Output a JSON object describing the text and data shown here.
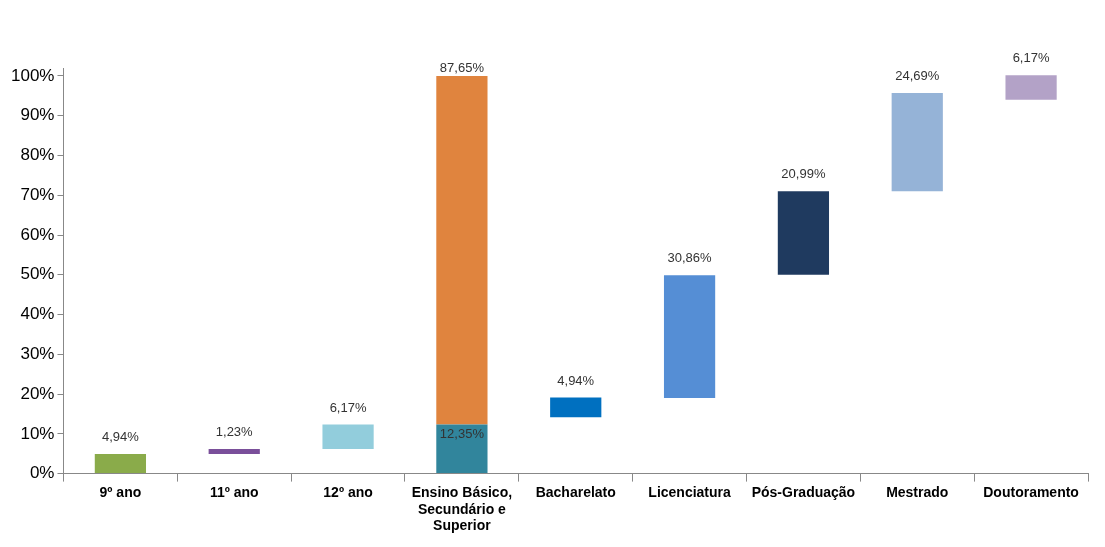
{
  "chart_data": {
    "type": "bar",
    "categories": [
      "9º ano",
      "11º ano",
      "12º ano",
      "Ensino Básico, Secundário e Superior",
      "Bacharelato",
      "Licenciatura",
      "Pós-Graduação",
      "Mestrado",
      "Doutoramento"
    ],
    "series": [
      {
        "colors": [
          "#8aab4a",
          "#7a4f9a",
          "#92cddc",
          "#31859c",
          "#0070c0",
          "#558ed5",
          "#1f3a5f",
          "#95b3d7",
          "#b3a2c7"
        ],
        "values": [
          4.94,
          1.23,
          6.17,
          12.35,
          4.94,
          30.86,
          20.99,
          24.69,
          6.17
        ],
        "base": [
          0,
          4.94,
          6.17,
          0,
          14.2,
          19,
          50,
          71,
          94
        ],
        "value_labels": [
          "4,94%",
          "1,23%",
          "6,17%",
          "12,35%",
          "4,94%",
          "30,86%",
          "20,99%",
          "24,69%",
          "6,17%"
        ]
      },
      {
        "colors": [
          null,
          null,
          null,
          "#e0843e",
          null,
          null,
          null,
          null,
          null
        ],
        "values": [
          null,
          null,
          null,
          87.65,
          null,
          null,
          null,
          null,
          null
        ],
        "base": [
          null,
          null,
          null,
          12.35,
          null,
          null,
          null,
          null,
          null
        ],
        "value_labels": [
          null,
          null,
          null,
          "87,65%",
          null,
          null,
          null,
          null,
          null
        ]
      }
    ],
    "ylim": [
      0,
      102
    ],
    "yticks": [
      {
        "value": 0,
        "label": "0%"
      },
      {
        "value": 10,
        "label": "10%"
      },
      {
        "value": 20,
        "label": "20%"
      },
      {
        "value": 30,
        "label": "30%"
      },
      {
        "value": 40,
        "label": "40%"
      },
      {
        "value": 50,
        "label": "50%"
      },
      {
        "value": 60,
        "label": "60%"
      },
      {
        "value": 70,
        "label": "70%"
      },
      {
        "value": 80,
        "label": "80%"
      },
      {
        "value": 90,
        "label": "90%"
      },
      {
        "value": 100,
        "label": "100%"
      }
    ],
    "grid": false,
    "legend": false
  }
}
